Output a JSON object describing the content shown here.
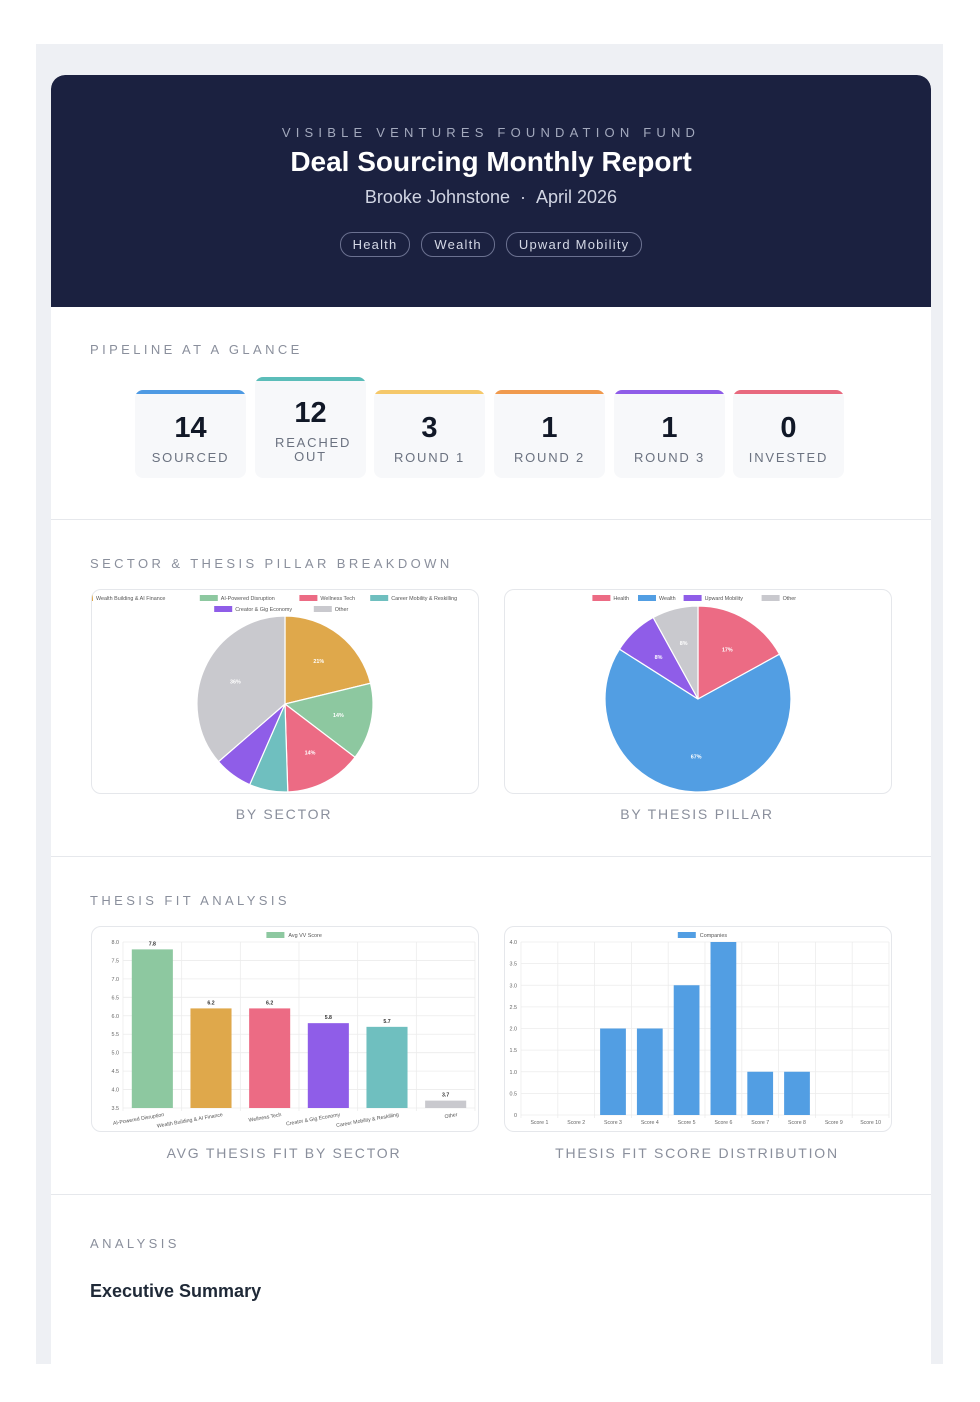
{
  "header": {
    "org": "VISIBLE VENTURES FOUNDATION FUND",
    "title": "Deal Sourcing Monthly Report",
    "author": "Brooke Johnstone",
    "separator": "·",
    "period": "April 2026",
    "tags": [
      "Health",
      "Wealth",
      "Upward Mobility"
    ]
  },
  "pipeline": {
    "label": "PIPELINE AT A GLANCE",
    "stages": [
      {
        "value": "14",
        "label": "SOURCED",
        "color": "#4e9ae3"
      },
      {
        "value": "12",
        "label": "REACHED OUT",
        "color": "#5bbdb9"
      },
      {
        "value": "3",
        "label": "ROUND 1",
        "color": "#f5c86a"
      },
      {
        "value": "1",
        "label": "ROUND 2",
        "color": "#f09a4e"
      },
      {
        "value": "1",
        "label": "ROUND 3",
        "color": "#8f5de8"
      },
      {
        "value": "0",
        "label": "INVESTED",
        "color": "#e8697e"
      }
    ]
  },
  "breakdown": {
    "label": "SECTOR & THESIS PILLAR BREAKDOWN",
    "sector_caption": "BY SECTOR",
    "pillar_caption": "BY THESIS PILLAR"
  },
  "thesis": {
    "label": "THESIS FIT ANALYSIS",
    "avg_caption": "AVG THESIS FIT BY SECTOR",
    "dist_caption": "THESIS FIT SCORE DISTRIBUTION"
  },
  "analysis": {
    "label": "ANALYSIS",
    "heading": "Executive Summary"
  },
  "chart_data": [
    {
      "type": "pie",
      "title": "BY SECTOR",
      "legend": "top",
      "slices": [
        {
          "label": "Wealth Building & AI Finance",
          "value": 21,
          "pct_label": "21%",
          "color": "#dfa84b"
        },
        {
          "label": "AI-Powered Disruption",
          "value": 14,
          "pct_label": "14%",
          "color": "#8dc8a0"
        },
        {
          "label": "Wellness Tech",
          "value": 14,
          "pct_label": "14%",
          "color": "#ec6b84"
        },
        {
          "label": "Career Mobility & Reskilling",
          "value": 7,
          "pct_label": "",
          "color": "#6fbfbf"
        },
        {
          "label": "Creator & Gig Economy",
          "value": 7,
          "pct_label": "",
          "color": "#8f5de8"
        },
        {
          "label": "Other",
          "value": 36,
          "pct_label": "36%",
          "color": "#c9c9ce"
        }
      ]
    },
    {
      "type": "pie",
      "title": "BY THESIS PILLAR",
      "legend": "top",
      "slices": [
        {
          "label": "Health",
          "value": 17,
          "pct_label": "17%",
          "color": "#ec6b84"
        },
        {
          "label": "Wealth",
          "value": 67,
          "pct_label": "67%",
          "color": "#529ee3"
        },
        {
          "label": "Upward Mobility",
          "value": 8,
          "pct_label": "8%",
          "color": "#8f5de8"
        },
        {
          "label": "Other",
          "value": 8,
          "pct_label": "8%",
          "color": "#c9c9ce"
        }
      ]
    },
    {
      "type": "bar",
      "title": "AVG THESIS FIT BY SECTOR",
      "legend_label": "Avg VV Score",
      "legend_color": "#8dc8a0",
      "categories": [
        "AI-Powered Disruption",
        "Wealth Building & AI Finance",
        "Wellness Tech",
        "Creator & Gig Economy",
        "Career Mobility & Reskilling",
        "Other"
      ],
      "values": [
        7.8,
        6.2,
        6.2,
        5.8,
        5.7,
        3.7
      ],
      "value_labels": [
        "7.8",
        "6.2",
        "6.2",
        "5.8",
        "5.7",
        "3.7"
      ],
      "colors": [
        "#8dc8a0",
        "#dfa84b",
        "#ec6b84",
        "#8f5de8",
        "#6fbfbf",
        "#c9c9ce"
      ],
      "ylim": [
        3.5,
        8.0
      ],
      "yticks": [
        "8.0",
        "7.5",
        "7.0",
        "6.5",
        "6.0",
        "5.5",
        "5.0",
        "4.5",
        "4.0",
        "3.5"
      ]
    },
    {
      "type": "bar",
      "title": "THESIS FIT SCORE DISTRIBUTION",
      "legend_label": "Companies",
      "legend_color": "#529ee3",
      "categories": [
        "Score 1",
        "Score 2",
        "Score 3",
        "Score 4",
        "Score 5",
        "Score 6",
        "Score 7",
        "Score 8",
        "Score 9",
        "Score 10"
      ],
      "values": [
        0,
        0,
        2,
        2,
        3,
        4,
        1,
        1,
        0,
        0
      ],
      "color": "#529ee3",
      "ylim": [
        0,
        4.0
      ],
      "yticks": [
        "4.0",
        "3.5",
        "3.0",
        "2.5",
        "2.0",
        "1.5",
        "1.0",
        "0.5",
        "0"
      ]
    }
  ]
}
